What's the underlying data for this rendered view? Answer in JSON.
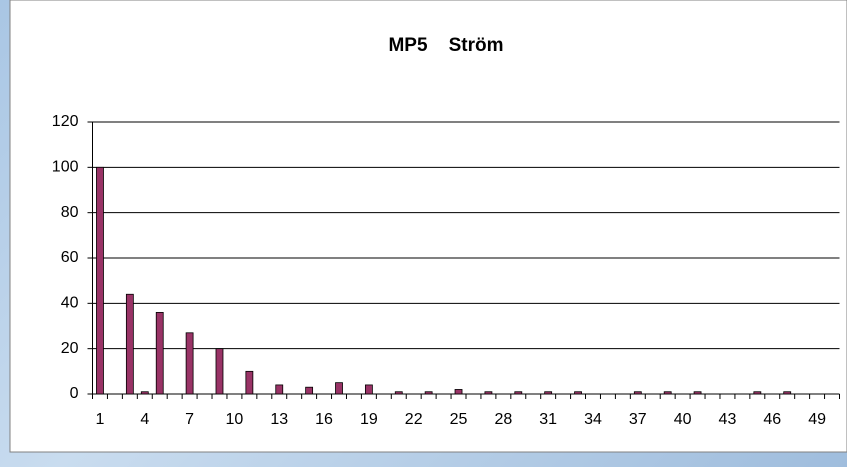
{
  "chart_data": {
    "type": "bar",
    "title": "MP5    Ström",
    "categories": [
      1,
      null,
      null,
      4,
      null,
      null,
      7,
      null,
      null,
      10,
      null,
      null,
      13,
      null,
      null,
      16,
      null,
      null,
      19,
      null,
      null,
      22,
      null,
      null,
      25,
      null,
      null,
      28,
      null,
      null,
      31,
      null,
      null,
      34,
      null,
      null,
      37,
      null,
      null,
      40,
      null,
      null,
      43,
      null,
      null,
      46,
      null,
      null,
      49,
      null
    ],
    "values": [
      100,
      0,
      44,
      1,
      36,
      0,
      27,
      0,
      20,
      0,
      10,
      0,
      4,
      0,
      3,
      0,
      5,
      0,
      4,
      0,
      1,
      0,
      1,
      0,
      2,
      0,
      1,
      0,
      1,
      0,
      1,
      0,
      1,
      0,
      0,
      0,
      1,
      0,
      1,
      0,
      1,
      0,
      0,
      0,
      1,
      0,
      1,
      0,
      0,
      0
    ],
    "color": "#993366",
    "ylim": [
      0,
      120
    ],
    "yticks": [
      0,
      20,
      40,
      60,
      80,
      100,
      120
    ],
    "grid": true
  }
}
